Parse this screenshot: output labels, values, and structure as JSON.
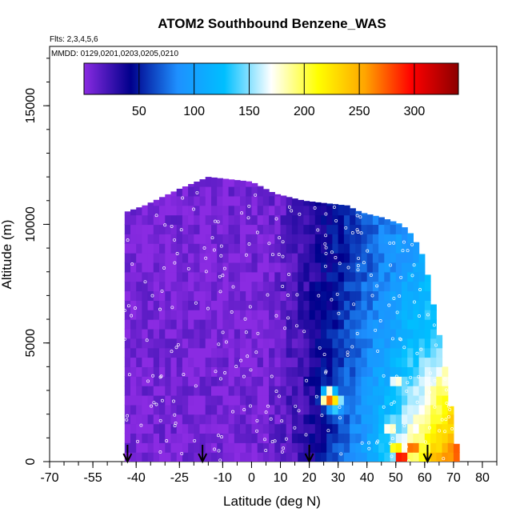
{
  "chart_data": {
    "type": "heatmap",
    "title": "ATOM2 Southbound Benzene_WAS",
    "flights_label": "Flts: 2,3,4,5,6",
    "dates_label": "MMDD: 0129,0201,0203,0205,0210",
    "xlabel": "Latitude (deg N)",
    "ylabel": "Altitude (m)",
    "x_ticks": [
      -70,
      -55,
      -40,
      -25,
      -10,
      0,
      10,
      20,
      30,
      40,
      50,
      60,
      70,
      80
    ],
    "x_tick_labels": [
      "-70",
      "-55",
      "-40",
      "-25",
      "-10",
      "0",
      "10",
      "20",
      "30",
      "40",
      "50",
      "60",
      "70",
      "80"
    ],
    "xlim": [
      -70,
      85
    ],
    "y_ticks": [
      0,
      5000,
      10000,
      15000
    ],
    "y_tick_labels": [
      "0",
      "5000",
      "10000",
      "15000"
    ],
    "ylim": [
      0,
      17500
    ],
    "colorbar": {
      "range": [
        0,
        340
      ],
      "ticks": [
        50,
        100,
        150,
        200,
        250,
        300
      ],
      "tick_labels": [
        "50",
        "100",
        "150",
        "200",
        "250",
        "300"
      ],
      "colors": [
        "#8a2be2",
        "#00008b",
        "#1e90ff",
        "#00bfff",
        "#ffffff",
        "#ffff00",
        "#ffa500",
        "#ff0000",
        "#8b0000"
      ]
    },
    "arrows_latitude": [
      -43,
      -17,
      20,
      61
    ],
    "profile_top_altitude": [
      {
        "lat": -44,
        "alt": 10500
      },
      {
        "lat": -37,
        "alt": 10800
      },
      {
        "lat": -25,
        "alt": 11500
      },
      {
        "lat": -15,
        "alt": 12000
      },
      {
        "lat": 0,
        "alt": 11800
      },
      {
        "lat": 8,
        "alt": 11300
      },
      {
        "lat": 18,
        "alt": 11000
      },
      {
        "lat": 25,
        "alt": 10900
      },
      {
        "lat": 33,
        "alt": 10800
      },
      {
        "lat": 38,
        "alt": 10500
      },
      {
        "lat": 45,
        "alt": 10300
      },
      {
        "lat": 52,
        "alt": 10000
      },
      {
        "lat": 56,
        "alt": 9500
      },
      {
        "lat": 60,
        "alt": 8500
      },
      {
        "lat": 64,
        "alt": 6000
      },
      {
        "lat": 67,
        "alt": 4000
      },
      {
        "lat": 70,
        "alt": 1500
      },
      {
        "lat": 72,
        "alt": 0
      }
    ],
    "hotspots": [
      {
        "lat": 52,
        "alt": 200,
        "value": 320
      },
      {
        "lat": 56,
        "alt": 500,
        "value": 310
      },
      {
        "lat": 50,
        "alt": 700,
        "value": 260
      },
      {
        "lat": 27,
        "alt": 2700,
        "value": 300
      },
      {
        "lat": 29,
        "alt": 2500,
        "value": 240
      },
      {
        "lat": 50,
        "alt": 3500,
        "value": 200
      },
      {
        "lat": 48,
        "alt": 1500,
        "value": 200
      }
    ]
  }
}
